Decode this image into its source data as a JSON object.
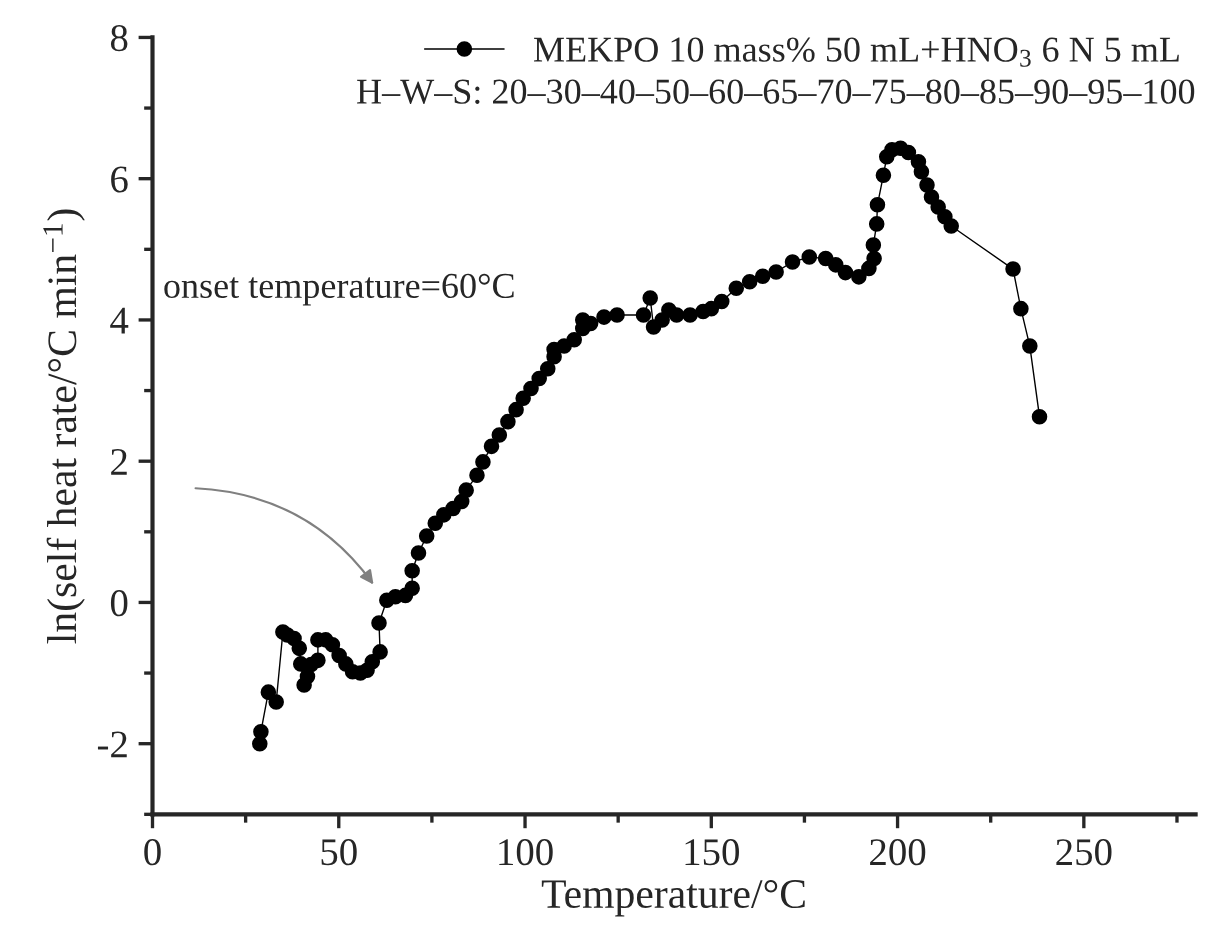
{
  "chart_data": {
    "type": "line",
    "xlabel": "Temperature/°C",
    "ylabel": "ln(self heat rate/°C min$^{−1}$)",
    "xlim": [
      0,
      280
    ],
    "ylim": [
      -3,
      8
    ],
    "xticks": [
      0,
      50,
      100,
      150,
      200,
      250
    ],
    "yticks": [
      -2,
      0,
      2,
      4,
      6,
      8
    ],
    "grid": false,
    "legend": "top right",
    "marker": "circle",
    "line_style": "solid",
    "annotations": [
      "H–W–S: 20–30–40–50–60–65–70–75–80–85–90–95–100",
      "onset temperature=60°C"
    ],
    "series": [
      {
        "name": "MEKPO 10 mass% 50 mL+HNO$_{3}$ 6 N 5 mL",
        "color": "#000000",
        "x": [
          28.8,
          29.1,
          31.1,
          33.2,
          35.0,
          36.2,
          38.0,
          39.4,
          39.8,
          40.7,
          41.6,
          42.6,
          44.4,
          44.4,
          46.5,
          48.3,
          50.1,
          51.9,
          53.7,
          55.8,
          57.6,
          59.0,
          61.1,
          60.8,
          62.9,
          65.2,
          67.9,
          69.7,
          69.7,
          71.4,
          73.6,
          75.9,
          78.2,
          80.7,
          83.0,
          84.2,
          87.1,
          88.7,
          91.0,
          93.1,
          95.4,
          97.6,
          99.5,
          101.6,
          103.8,
          106.1,
          107.8,
          107.8,
          110.5,
          113.2,
          115.5,
          115.5,
          117.6,
          121.2,
          124.7,
          131.8,
          133.6,
          134.5,
          136.8,
          138.6,
          140.7,
          144.3,
          147.8,
          150.0,
          152.8,
          156.7,
          160.3,
          163.8,
          167.4,
          171.8,
          176.3,
          180.7,
          183.4,
          186.0,
          189.6,
          192.3,
          193.7,
          193.5,
          194.4,
          194.6,
          196.2,
          197.1,
          198.5,
          200.8,
          202.9,
          205.6,
          206.4,
          207.9,
          209.1,
          210.9,
          212.7,
          214.4,
          231.0,
          233.1,
          235.5,
          238.1
        ],
        "values": [
          -2.0,
          -1.83,
          -1.27,
          -1.41,
          -0.42,
          -0.46,
          -0.51,
          -0.65,
          -0.87,
          -1.17,
          -1.05,
          -0.88,
          -0.82,
          -0.53,
          -0.53,
          -0.6,
          -0.75,
          -0.87,
          -0.98,
          -1.0,
          -0.96,
          -0.84,
          -0.7,
          -0.29,
          0.03,
          0.08,
          0.1,
          0.2,
          0.45,
          0.7,
          0.94,
          1.12,
          1.24,
          1.33,
          1.43,
          1.59,
          1.8,
          1.99,
          2.21,
          2.37,
          2.56,
          2.73,
          2.89,
          3.03,
          3.17,
          3.31,
          3.48,
          3.58,
          3.63,
          3.72,
          3.88,
          4.0,
          3.95,
          4.04,
          4.07,
          4.07,
          4.31,
          3.9,
          4.0,
          4.14,
          4.07,
          4.07,
          4.12,
          4.16,
          4.26,
          4.45,
          4.54,
          4.62,
          4.68,
          4.82,
          4.89,
          4.87,
          4.78,
          4.67,
          4.61,
          4.73,
          4.87,
          5.06,
          5.36,
          5.63,
          6.05,
          6.31,
          6.41,
          6.43,
          6.37,
          6.24,
          6.1,
          5.91,
          5.74,
          5.6,
          5.46,
          5.33,
          4.72,
          4.16,
          3.63,
          2.63
        ]
      }
    ]
  }
}
